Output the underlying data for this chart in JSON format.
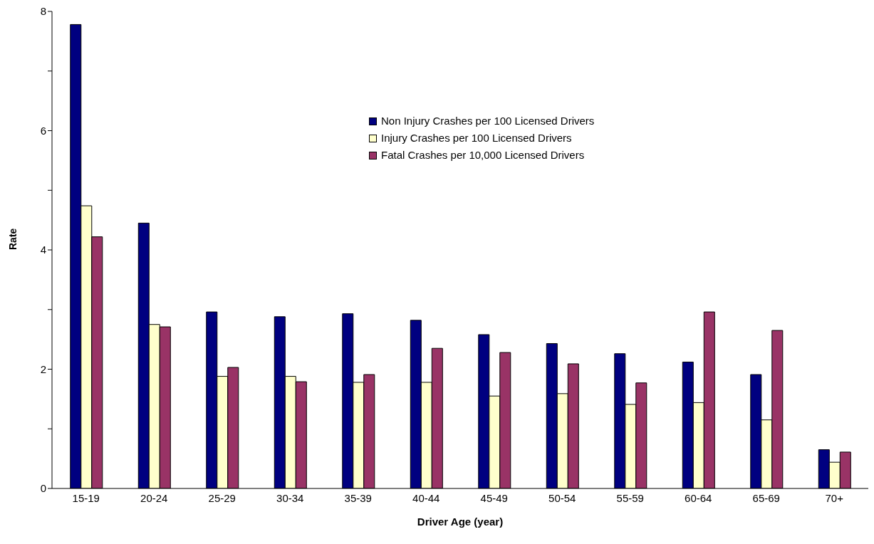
{
  "chart_data": {
    "type": "bar",
    "xlabel": "Driver Age (year)",
    "ylabel": "Rate",
    "categories": [
      "15-19",
      "20-24",
      "25-29",
      "30-34",
      "35-39",
      "40-44",
      "45-49",
      "50-54",
      "55-59",
      "60-64",
      "65-69",
      "70+"
    ],
    "series": [
      {
        "name": "Non Injury Crashes per 100 Licensed Drivers",
        "color": "#000080",
        "values": [
          7.78,
          4.45,
          2.96,
          2.88,
          2.93,
          2.82,
          2.58,
          2.43,
          2.26,
          2.12,
          1.91,
          0.65
        ]
      },
      {
        "name": "Injury Crashes per 100 Licensed Drivers",
        "color": "#ffffcc",
        "values": [
          4.74,
          2.75,
          1.88,
          1.88,
          1.78,
          1.78,
          1.55,
          1.59,
          1.41,
          1.44,
          1.15,
          0.44
        ]
      },
      {
        "name": "Fatal Crashes per 10,000 Licensed Drivers",
        "color": "#993366",
        "values": [
          4.22,
          2.71,
          2.03,
          1.79,
          1.91,
          2.35,
          2.28,
          2.09,
          1.77,
          2.96,
          2.65,
          0.61
        ]
      }
    ],
    "ylim": [
      0,
      8
    ],
    "yticks": [
      0,
      {
        "value": 1,
        "label": null
      },
      2,
      {
        "value": 3,
        "label": null
      },
      4,
      {
        "value": 5,
        "label": null
      },
      6,
      {
        "value": 7,
        "label": null
      },
      8
    ],
    "grid": false,
    "legend": "top"
  }
}
